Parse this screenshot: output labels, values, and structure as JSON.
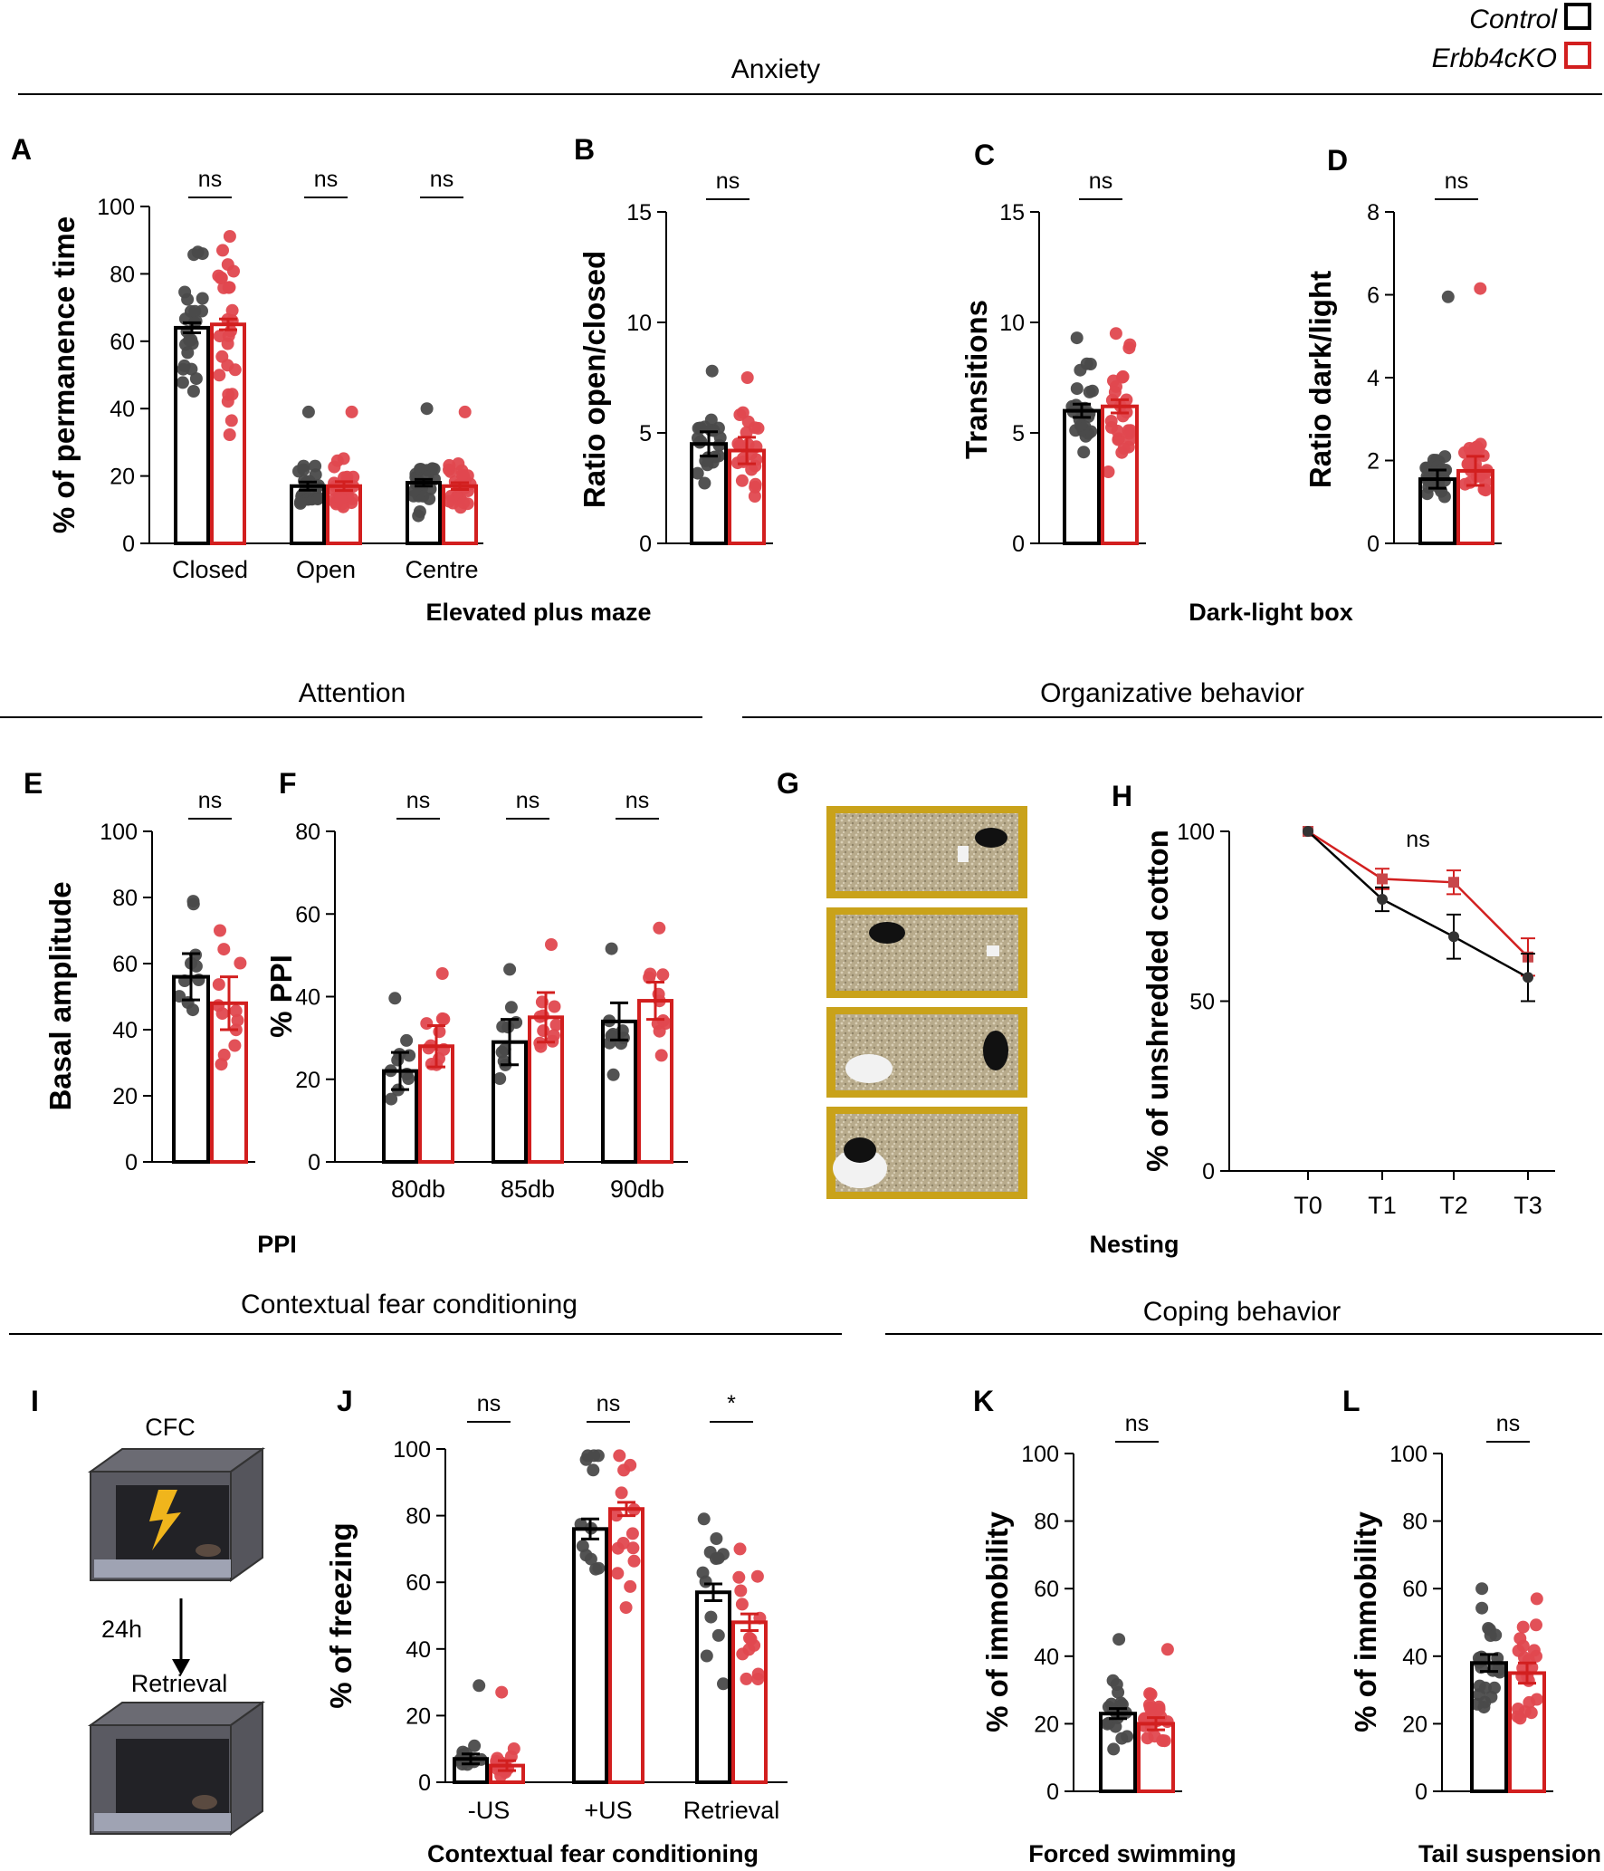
{
  "legend": {
    "control": {
      "label": "Control",
      "color": "#000000"
    },
    "ko": {
      "label": "Erbb4cKO",
      "color": "#d21f1f"
    }
  },
  "colors": {
    "control_dot": "#4a4a4a",
    "ko_dot": "#e0484f",
    "ko_bar": "#d21f1f"
  },
  "sections": {
    "anxiety": "Anxiety",
    "attention": "Attention",
    "organizative": "Organizative behavior",
    "cfc": "Contextual fear conditioning",
    "coping": "Coping behavior"
  },
  "group_titles": {
    "epm": "Elevated plus maze",
    "dlb": "Dark-light box",
    "ppi": "PPI",
    "nesting": "Nesting",
    "cfc": "Contextual fear conditioning",
    "fs": "Forced swimming",
    "ts": "Tail suspension"
  },
  "schematic": {
    "cfc_label": "CFC",
    "delay": "24h",
    "retrieval": "Retrieval"
  },
  "chart_data": [
    {
      "id": "A",
      "type": "bar",
      "ylabel": "% of permanence time",
      "ylim": [
        0,
        100
      ],
      "yticks": [
        "0",
        "20",
        "40",
        "60",
        "80",
        "100"
      ],
      "categories": [
        "Closed",
        "Open",
        "Centre"
      ],
      "series": [
        {
          "name": "Control",
          "values": [
            64,
            17,
            18
          ],
          "sem": [
            1.5,
            1.2,
            1.0
          ]
        },
        {
          "name": "Erbb4cKO",
          "values": [
            65,
            17,
            17
          ],
          "sem": [
            1.6,
            1.3,
            1.0
          ]
        }
      ],
      "significance": [
        "ns",
        "ns",
        "ns"
      ],
      "n": [
        24,
        26
      ]
    },
    {
      "id": "B",
      "type": "bar",
      "ylabel": "Ratio open/closed",
      "ylim": [
        0,
        15
      ],
      "yticks": [
        "0",
        "5",
        "10",
        "15"
      ],
      "categories": [
        ""
      ],
      "series": [
        {
          "name": "Control",
          "values": [
            4.5
          ],
          "sem": [
            0.55
          ]
        },
        {
          "name": "Erbb4cKO",
          "values": [
            4.2
          ],
          "sem": [
            0.6
          ]
        }
      ],
      "significance": [
        "ns"
      ],
      "n": [
        22,
        22
      ]
    },
    {
      "id": "C",
      "type": "bar",
      "ylabel": "Transitions",
      "ylim": [
        0,
        15
      ],
      "yticks": [
        "0",
        "5",
        "10",
        "15"
      ],
      "categories": [
        ""
      ],
      "series": [
        {
          "name": "Control",
          "values": [
            6.0
          ],
          "sem": [
            0.3
          ]
        },
        {
          "name": "Erbb4cKO",
          "values": [
            6.2
          ],
          "sem": [
            0.3
          ]
        }
      ],
      "significance": [
        "ns"
      ],
      "n": [
        26,
        26
      ]
    },
    {
      "id": "D",
      "type": "bar",
      "ylabel": "Ratio dark/light",
      "ylim": [
        0,
        8
      ],
      "yticks": [
        "0",
        "2",
        "4",
        "6",
        "8"
      ],
      "categories": [
        ""
      ],
      "series": [
        {
          "name": "Control",
          "values": [
            1.55
          ],
          "sem": [
            0.22
          ]
        },
        {
          "name": "Erbb4cKO",
          "values": [
            1.75
          ],
          "sem": [
            0.35
          ]
        }
      ],
      "significance": [
        "ns"
      ],
      "n": [
        26,
        26
      ]
    },
    {
      "id": "E",
      "type": "bar",
      "ylabel": "Basal amplitude",
      "ylim": [
        0,
        100
      ],
      "yticks": [
        "0",
        "20",
        "40",
        "60",
        "80",
        "100"
      ],
      "categories": [
        ""
      ],
      "series": [
        {
          "name": "Control",
          "values": [
            56
          ],
          "sem": [
            7
          ]
        },
        {
          "name": "Erbb4cKO",
          "values": [
            48
          ],
          "sem": [
            8
          ]
        }
      ],
      "significance": [
        "ns"
      ],
      "n": [
        10,
        12
      ]
    },
    {
      "id": "F",
      "type": "bar",
      "ylabel": "% PPI",
      "ylim": [
        0,
        80
      ],
      "yticks": [
        "0",
        "20",
        "40",
        "60",
        "80"
      ],
      "categories": [
        "80db",
        "85db",
        "90db"
      ],
      "series": [
        {
          "name": "Control",
          "values": [
            22,
            29,
            34
          ],
          "sem": [
            4.5,
            5.5,
            4.5
          ]
        },
        {
          "name": "Erbb4cKO",
          "values": [
            28,
            35,
            39
          ],
          "sem": [
            5,
            6,
            4.5
          ]
        }
      ],
      "significance": [
        "ns",
        "ns",
        "ns"
      ],
      "n": [
        10,
        11
      ]
    },
    {
      "id": "H",
      "type": "line",
      "ylabel": "% of unshredded cotton",
      "ylim": [
        0,
        100
      ],
      "yticks": [
        "0",
        "50",
        "100"
      ],
      "x": [
        "T0",
        "T1",
        "T2",
        "T3"
      ],
      "series": [
        {
          "name": "Control",
          "values": [
            100,
            80,
            69,
            57
          ],
          "sem": [
            0,
            3.5,
            6.5,
            7
          ]
        },
        {
          "name": "Erbb4cKO",
          "values": [
            100,
            86,
            85,
            63
          ],
          "sem": [
            0,
            3,
            3.5,
            5.5
          ]
        }
      ],
      "significance": "ns"
    },
    {
      "id": "J",
      "type": "bar",
      "ylabel": "% of freezing",
      "ylim": [
        0,
        100
      ],
      "yticks": [
        "0",
        "20",
        "40",
        "60",
        "80",
        "100"
      ],
      "categories": [
        "-US",
        "+US",
        "Retrieval"
      ],
      "series": [
        {
          "name": "Control",
          "values": [
            7,
            76,
            57
          ],
          "sem": [
            1.5,
            3,
            2.5
          ]
        },
        {
          "name": "Erbb4cKO",
          "values": [
            5,
            82,
            48
          ],
          "sem": [
            1.5,
            2,
            2.5
          ]
        }
      ],
      "significance": [
        "ns",
        "ns",
        "*"
      ],
      "n": [
        12,
        14
      ]
    },
    {
      "id": "K",
      "type": "bar",
      "ylabel": "% of immobility",
      "ylim": [
        0,
        100
      ],
      "yticks": [
        "0",
        "20",
        "40",
        "60",
        "80",
        "100"
      ],
      "categories": [
        ""
      ],
      "series": [
        {
          "name": "Control",
          "values": [
            23
          ],
          "sem": [
            1.5
          ]
        },
        {
          "name": "Erbb4cKO",
          "values": [
            20
          ],
          "sem": [
            1.8
          ]
        }
      ],
      "significance": [
        "ns"
      ],
      "n": [
        20,
        20
      ]
    },
    {
      "id": "L",
      "type": "bar",
      "ylabel": "% of immobility",
      "ylim": [
        0,
        100
      ],
      "yticks": [
        "0",
        "20",
        "40",
        "60",
        "80",
        "100"
      ],
      "categories": [
        ""
      ],
      "series": [
        {
          "name": "Control",
          "values": [
            38
          ],
          "sem": [
            2.5
          ]
        },
        {
          "name": "Erbb4cKO",
          "values": [
            35
          ],
          "sem": [
            3
          ]
        }
      ],
      "significance": [
        "ns"
      ],
      "n": [
        24,
        22
      ]
    }
  ],
  "panel_labels": {
    "A": "A",
    "B": "B",
    "C": "C",
    "D": "D",
    "E": "E",
    "F": "F",
    "G": "G",
    "H": "H",
    "I": "I",
    "J": "J",
    "K": "K",
    "L": "L"
  }
}
